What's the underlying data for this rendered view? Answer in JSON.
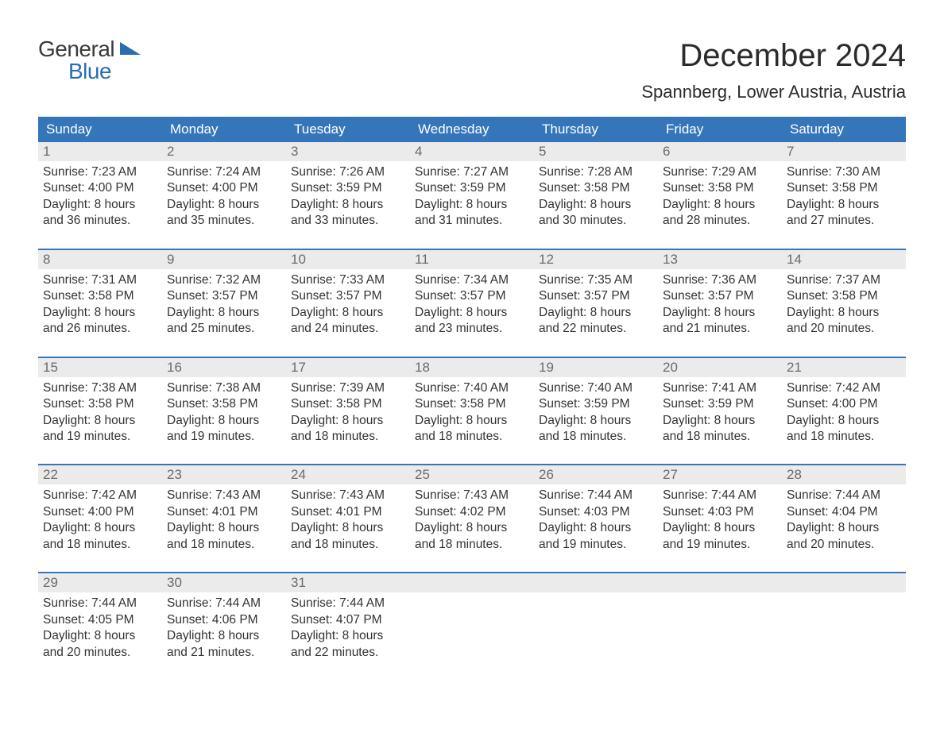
{
  "logo": {
    "word1": "General",
    "word2": "Blue",
    "icon_color": "#2a6db5"
  },
  "title": "December 2024",
  "location": "Spannberg, Lower Austria, Austria",
  "colors": {
    "header_bg": "#3576ba",
    "header_text": "#ffffff",
    "daynum_bg": "#ebebeb",
    "daynum_text": "#6b6b6b",
    "body_text": "#333333",
    "week_border": "#3576ba",
    "page_bg": "#ffffff"
  },
  "day_names": [
    "Sunday",
    "Monday",
    "Tuesday",
    "Wednesday",
    "Thursday",
    "Friday",
    "Saturday"
  ],
  "labels": {
    "sunrise": "Sunrise:",
    "sunset": "Sunset:",
    "daylight": "Daylight:"
  },
  "weeks": [
    [
      {
        "n": "1",
        "sr": "7:23 AM",
        "ss": "4:00 PM",
        "dl": "8 hours and 36 minutes."
      },
      {
        "n": "2",
        "sr": "7:24 AM",
        "ss": "4:00 PM",
        "dl": "8 hours and 35 minutes."
      },
      {
        "n": "3",
        "sr": "7:26 AM",
        "ss": "3:59 PM",
        "dl": "8 hours and 33 minutes."
      },
      {
        "n": "4",
        "sr": "7:27 AM",
        "ss": "3:59 PM",
        "dl": "8 hours and 31 minutes."
      },
      {
        "n": "5",
        "sr": "7:28 AM",
        "ss": "3:58 PM",
        "dl": "8 hours and 30 minutes."
      },
      {
        "n": "6",
        "sr": "7:29 AM",
        "ss": "3:58 PM",
        "dl": "8 hours and 28 minutes."
      },
      {
        "n": "7",
        "sr": "7:30 AM",
        "ss": "3:58 PM",
        "dl": "8 hours and 27 minutes."
      }
    ],
    [
      {
        "n": "8",
        "sr": "7:31 AM",
        "ss": "3:58 PM",
        "dl": "8 hours and 26 minutes."
      },
      {
        "n": "9",
        "sr": "7:32 AM",
        "ss": "3:57 PM",
        "dl": "8 hours and 25 minutes."
      },
      {
        "n": "10",
        "sr": "7:33 AM",
        "ss": "3:57 PM",
        "dl": "8 hours and 24 minutes."
      },
      {
        "n": "11",
        "sr": "7:34 AM",
        "ss": "3:57 PM",
        "dl": "8 hours and 23 minutes."
      },
      {
        "n": "12",
        "sr": "7:35 AM",
        "ss": "3:57 PM",
        "dl": "8 hours and 22 minutes."
      },
      {
        "n": "13",
        "sr": "7:36 AM",
        "ss": "3:57 PM",
        "dl": "8 hours and 21 minutes."
      },
      {
        "n": "14",
        "sr": "7:37 AM",
        "ss": "3:58 PM",
        "dl": "8 hours and 20 minutes."
      }
    ],
    [
      {
        "n": "15",
        "sr": "7:38 AM",
        "ss": "3:58 PM",
        "dl": "8 hours and 19 minutes."
      },
      {
        "n": "16",
        "sr": "7:38 AM",
        "ss": "3:58 PM",
        "dl": "8 hours and 19 minutes."
      },
      {
        "n": "17",
        "sr": "7:39 AM",
        "ss": "3:58 PM",
        "dl": "8 hours and 18 minutes."
      },
      {
        "n": "18",
        "sr": "7:40 AM",
        "ss": "3:58 PM",
        "dl": "8 hours and 18 minutes."
      },
      {
        "n": "19",
        "sr": "7:40 AM",
        "ss": "3:59 PM",
        "dl": "8 hours and 18 minutes."
      },
      {
        "n": "20",
        "sr": "7:41 AM",
        "ss": "3:59 PM",
        "dl": "8 hours and 18 minutes."
      },
      {
        "n": "21",
        "sr": "7:42 AM",
        "ss": "4:00 PM",
        "dl": "8 hours and 18 minutes."
      }
    ],
    [
      {
        "n": "22",
        "sr": "7:42 AM",
        "ss": "4:00 PM",
        "dl": "8 hours and 18 minutes."
      },
      {
        "n": "23",
        "sr": "7:43 AM",
        "ss": "4:01 PM",
        "dl": "8 hours and 18 minutes."
      },
      {
        "n": "24",
        "sr": "7:43 AM",
        "ss": "4:01 PM",
        "dl": "8 hours and 18 minutes."
      },
      {
        "n": "25",
        "sr": "7:43 AM",
        "ss": "4:02 PM",
        "dl": "8 hours and 18 minutes."
      },
      {
        "n": "26",
        "sr": "7:44 AM",
        "ss": "4:03 PM",
        "dl": "8 hours and 19 minutes."
      },
      {
        "n": "27",
        "sr": "7:44 AM",
        "ss": "4:03 PM",
        "dl": "8 hours and 19 minutes."
      },
      {
        "n": "28",
        "sr": "7:44 AM",
        "ss": "4:04 PM",
        "dl": "8 hours and 20 minutes."
      }
    ],
    [
      {
        "n": "29",
        "sr": "7:44 AM",
        "ss": "4:05 PM",
        "dl": "8 hours and 20 minutes."
      },
      {
        "n": "30",
        "sr": "7:44 AM",
        "ss": "4:06 PM",
        "dl": "8 hours and 21 minutes."
      },
      {
        "n": "31",
        "sr": "7:44 AM",
        "ss": "4:07 PM",
        "dl": "8 hours and 22 minutes."
      },
      null,
      null,
      null,
      null
    ]
  ]
}
